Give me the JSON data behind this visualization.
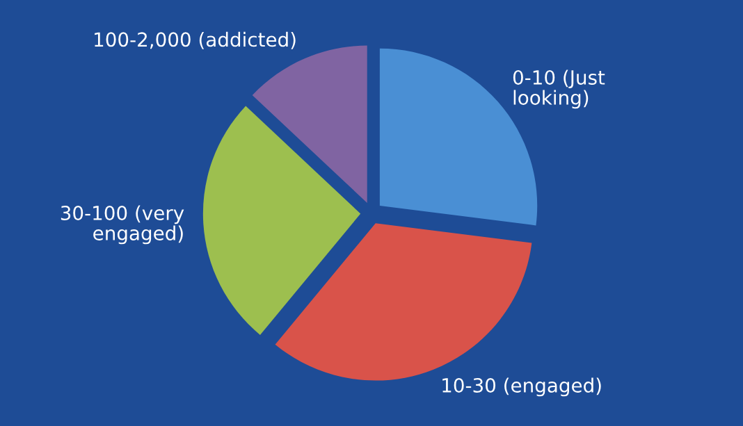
{
  "chart_data": {
    "type": "pie",
    "categories": [
      "0-10 (Just\nlooking)",
      "10-30 (engaged)",
      "30-100 (very\nengaged)",
      "100-2,000 (addicted)"
    ],
    "values": [
      27,
      34,
      26,
      13
    ],
    "colors": [
      "#4a8fd4",
      "#d9534a",
      "#9dbf4f",
      "#8064a2"
    ],
    "legend": false
  }
}
